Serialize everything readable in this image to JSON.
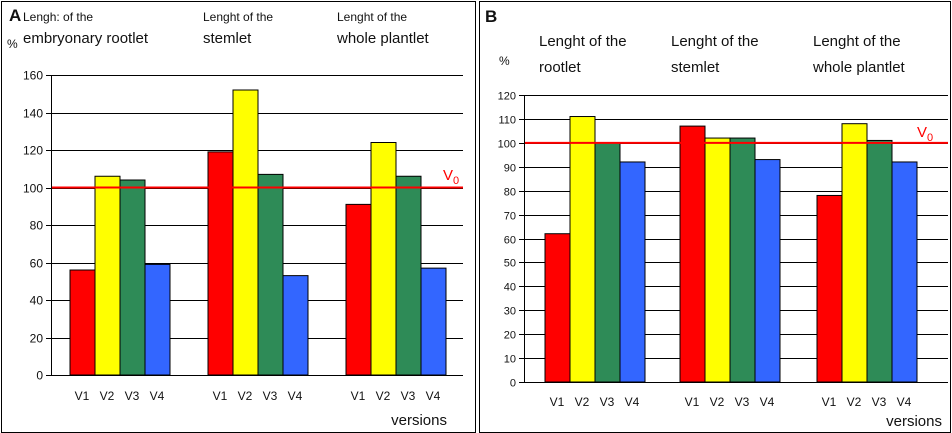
{
  "chart_data": [
    {
      "type": "bar",
      "panel_letter": "A",
      "y_unit": "%",
      "ylim": [
        0,
        160
      ],
      "yticks": [
        0,
        20,
        40,
        60,
        80,
        100,
        120,
        140,
        160
      ],
      "groups": [
        {
          "title_lines": [
            "Lengh: of the",
            "embryonary rootlet"
          ]
        },
        {
          "title_lines": [
            "Lenght of the",
            "stemlet"
          ]
        },
        {
          "title_lines": [
            "Lenght of the",
            "whole plantlet"
          ]
        }
      ],
      "categories": [
        "V1",
        "V2",
        "V3",
        "V4"
      ],
      "series": [
        {
          "values": [
            56,
            106,
            104,
            59
          ]
        },
        {
          "values": [
            119,
            152,
            107,
            53
          ]
        },
        {
          "values": [
            91,
            124,
            106,
            57
          ]
        }
      ],
      "reference_line": {
        "label": "V",
        "label_sub": "0",
        "value": 100
      },
      "xlabel": "versions",
      "grid": true,
      "colors": [
        "#ff0000",
        "#ffff00",
        "#2e8b57",
        "#3366ff"
      ],
      "reference_color": "#ff0000"
    },
    {
      "type": "bar",
      "panel_letter": "B",
      "y_unit": "%",
      "ylim": [
        0,
        120
      ],
      "yticks": [
        0,
        10,
        20,
        30,
        40,
        50,
        60,
        70,
        80,
        90,
        100,
        110,
        120
      ],
      "groups": [
        {
          "title_lines": [
            "Lenght of the",
            "rootlet"
          ]
        },
        {
          "title_lines": [
            "Lenght of the",
            "stemlet"
          ]
        },
        {
          "title_lines": [
            "Lenght of the",
            "whole plantlet"
          ]
        }
      ],
      "categories": [
        "V1",
        "V2",
        "V3",
        "V4"
      ],
      "series": [
        {
          "values": [
            62,
            111,
            100,
            92
          ]
        },
        {
          "values": [
            107,
            102,
            102,
            93
          ]
        },
        {
          "values": [
            78,
            108,
            101,
            92
          ]
        }
      ],
      "reference_line": {
        "label": "V",
        "label_sub": "0",
        "value": 100
      },
      "xlabel": "versions",
      "grid": true,
      "colors": [
        "#ff0000",
        "#ffff00",
        "#2e8b57",
        "#3366ff"
      ],
      "reference_color": "#ff0000"
    }
  ]
}
